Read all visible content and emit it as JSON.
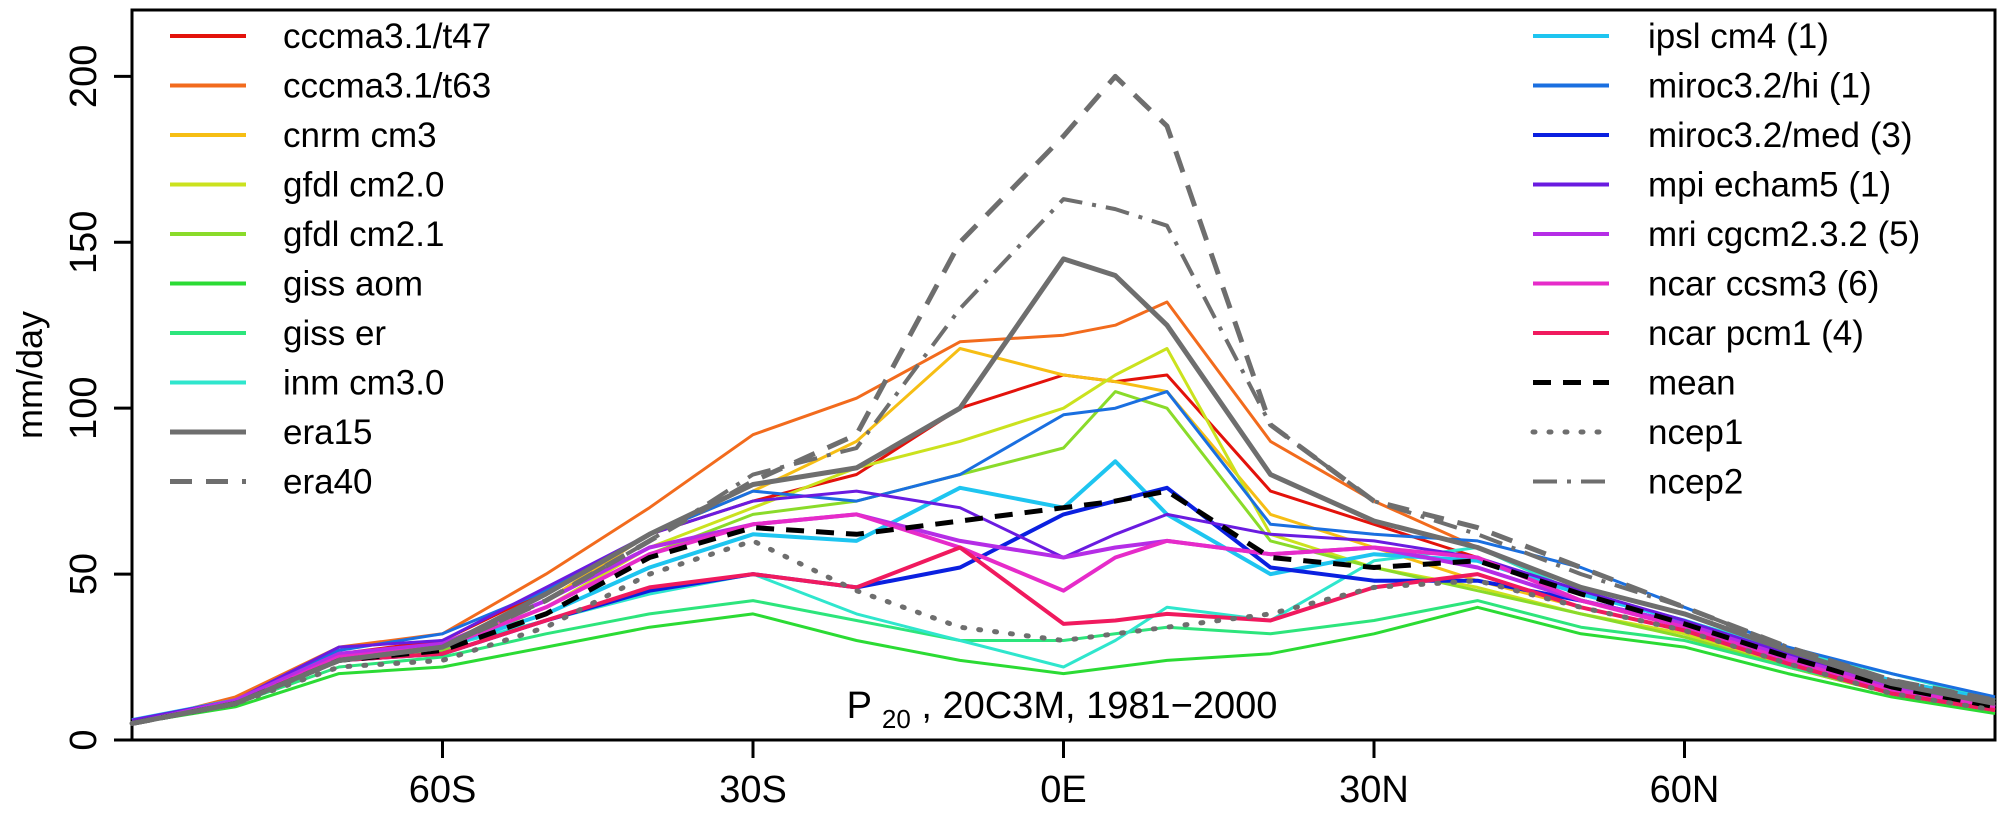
{
  "chart_data": {
    "type": "line",
    "ylabel": "mm/day",
    "ylim": [
      0,
      220
    ],
    "xlim": [
      -90,
      90
    ],
    "yticks": [
      0,
      50,
      100,
      150,
      200
    ],
    "ytick_labels": [
      "0",
      "50",
      "100",
      "150",
      "200"
    ],
    "xticks": [
      -60,
      -30,
      0,
      30,
      60
    ],
    "xtick_labels": [
      "60S",
      "30S",
      "0E",
      "30N",
      "60N"
    ],
    "caption": {
      "main": "P",
      "subscript": "20",
      "rest": " , 20C3M, 1981−2000"
    },
    "legend_left": [
      "cccma3.1/t47",
      "cccma3.1/t63",
      "cnrm cm3",
      "gfdl cm2.0",
      "gfdl cm2.1",
      "giss aom",
      "giss er",
      "inm cm3.0",
      "era15",
      "era40"
    ],
    "legend_right": [
      "ipsl cm4 (1)",
      "miroc3.2/hi (1)",
      "miroc3.2/med (3)",
      "mpi echam5 (1)",
      "mri cgcm2.3.2 (5)",
      "ncar ccsm3 (6)",
      "ncar pcm1 (4)",
      "mean",
      "ncep1",
      "ncep2"
    ],
    "x": [
      -90,
      -80,
      -70,
      -60,
      -50,
      -40,
      -30,
      -20,
      -10,
      0,
      5,
      10,
      20,
      30,
      40,
      50,
      60,
      70,
      80,
      90
    ],
    "series": [
      {
        "name": "cccma3.1/t47",
        "color": "#E3120B",
        "width": 3,
        "dash": "",
        "values": [
          5,
          12,
          26,
          30,
          45,
          62,
          72,
          80,
          100,
          110,
          108,
          110,
          75,
          65,
          55,
          42,
          35,
          24,
          16,
          10
        ]
      },
      {
        "name": "cccma3.1/t63",
        "color": "#F26B1D",
        "width": 3,
        "dash": "",
        "values": [
          5,
          13,
          28,
          32,
          50,
          70,
          92,
          103,
          120,
          122,
          125,
          132,
          90,
          72,
          58,
          44,
          36,
          25,
          17,
          11
        ]
      },
      {
        "name": "cnrm cm3",
        "color": "#F6BE14",
        "width": 3,
        "dash": "",
        "values": [
          5,
          12,
          25,
          28,
          42,
          62,
          75,
          90,
          118,
          110,
          108,
          105,
          68,
          58,
          48,
          40,
          33,
          23,
          15,
          10
        ]
      },
      {
        "name": "gfdl cm2.0",
        "color": "#CBE21E",
        "width": 3,
        "dash": "",
        "values": [
          5,
          11,
          24,
          27,
          40,
          58,
          70,
          82,
          90,
          100,
          110,
          118,
          62,
          52,
          46,
          38,
          32,
          22,
          14,
          9
        ]
      },
      {
        "name": "gfdl cm2.1",
        "color": "#8ADB2A",
        "width": 3,
        "dash": "",
        "values": [
          5,
          11,
          24,
          27,
          40,
          56,
          68,
          72,
          80,
          88,
          105,
          100,
          60,
          52,
          45,
          38,
          31,
          22,
          14,
          9
        ]
      },
      {
        "name": "giss aom",
        "color": "#2BDB34",
        "width": 3,
        "dash": "",
        "values": [
          5,
          10,
          20,
          22,
          28,
          34,
          38,
          30,
          24,
          20,
          22,
          24,
          26,
          32,
          40,
          32,
          28,
          20,
          13,
          8
        ]
      },
      {
        "name": "giss er",
        "color": "#2DE57C",
        "width": 3,
        "dash": "",
        "values": [
          5,
          11,
          22,
          25,
          32,
          38,
          42,
          36,
          30,
          30,
          32,
          34,
          32,
          36,
          42,
          34,
          30,
          22,
          15,
          10
        ]
      },
      {
        "name": "inm cm3.0",
        "color": "#2FE6CD",
        "width": 3,
        "dash": "",
        "values": [
          6,
          12,
          26,
          28,
          36,
          44,
          50,
          38,
          30,
          22,
          30,
          40,
          36,
          54,
          58,
          44,
          36,
          27,
          20,
          12
        ]
      },
      {
        "name": "ipsl cm4 (1)",
        "color": "#1EC5F0",
        "width": 4,
        "dash": "",
        "values": [
          6,
          12,
          25,
          28,
          38,
          52,
          62,
          60,
          76,
          70,
          84,
          68,
          50,
          56,
          54,
          44,
          36,
          26,
          18,
          12
        ]
      },
      {
        "name": "miroc3.2/hi (1)",
        "color": "#1A6FE0",
        "width": 3,
        "dash": "",
        "values": [
          6,
          12,
          27,
          32,
          45,
          62,
          75,
          72,
          80,
          98,
          100,
          105,
          65,
          62,
          60,
          52,
          40,
          28,
          20,
          13
        ]
      },
      {
        "name": "miroc3.2/med (3)",
        "color": "#0A20E0",
        "width": 4,
        "dash": "",
        "values": [
          5,
          11,
          24,
          26,
          36,
          45,
          50,
          46,
          52,
          68,
          72,
          76,
          52,
          48,
          48,
          42,
          35,
          25,
          16,
          10
        ]
      },
      {
        "name": "mpi echam5 (1)",
        "color": "#6A1BE0",
        "width": 3,
        "dash": "",
        "values": [
          6,
          12,
          28,
          30,
          46,
          62,
          72,
          75,
          70,
          55,
          62,
          68,
          62,
          60,
          55,
          45,
          36,
          26,
          17,
          11
        ]
      },
      {
        "name": "mri cgcm2.3.2 (5)",
        "color": "#B52DE6",
        "width": 4,
        "dash": "",
        "values": [
          5,
          12,
          26,
          29,
          42,
          58,
          65,
          68,
          60,
          55,
          58,
          60,
          56,
          58,
          52,
          42,
          35,
          25,
          16,
          10
        ]
      },
      {
        "name": "ncar ccsm3 (6)",
        "color": "#E62BC9",
        "width": 4,
        "dash": "",
        "values": [
          5,
          11,
          25,
          28,
          40,
          56,
          65,
          68,
          58,
          45,
          55,
          60,
          56,
          58,
          55,
          42,
          34,
          24,
          15,
          10
        ]
      },
      {
        "name": "ncar pcm1 (4)",
        "color": "#F01A5E",
        "width": 4,
        "dash": "",
        "values": [
          5,
          11,
          24,
          26,
          36,
          46,
          50,
          46,
          58,
          35,
          36,
          38,
          36,
          46,
          50,
          40,
          33,
          23,
          14,
          9
        ]
      },
      {
        "name": "mean",
        "color": "#000000",
        "width": 5,
        "dash": "18,12",
        "values": [
          5,
          11,
          24,
          27,
          38,
          55,
          64,
          62,
          66,
          70,
          72,
          75,
          55,
          52,
          54,
          44,
          35,
          25,
          16,
          10
        ]
      },
      {
        "name": "ncep1",
        "color": "#6E6E6E",
        "width": 5,
        "dash": "2,14",
        "values": [
          5,
          11,
          22,
          24,
          34,
          50,
          60,
          45,
          34,
          30,
          32,
          34,
          38,
          46,
          48,
          40,
          33,
          23,
          14,
          9
        ]
      },
      {
        "name": "ncep2",
        "color": "#6E6E6E",
        "width": 4,
        "dash": "24,10,4,10",
        "values": [
          5,
          11,
          24,
          28,
          42,
          60,
          80,
          88,
          130,
          163,
          160,
          155,
          95,
          72,
          62,
          50,
          40,
          28,
          18,
          12
        ]
      },
      {
        "name": "era15",
        "color": "#6E6E6E",
        "width": 5,
        "dash": "",
        "values": [
          5,
          11,
          24,
          28,
          44,
          62,
          77,
          82,
          100,
          145,
          140,
          125,
          80,
          66,
          58,
          46,
          38,
          27,
          17,
          11
        ]
      },
      {
        "name": "era40",
        "color": "#6E6E6E",
        "width": 5,
        "dash": "22,14",
        "values": [
          5,
          11,
          24,
          28,
          42,
          60,
          78,
          92,
          150,
          182,
          200,
          185,
          95,
          72,
          64,
          52,
          40,
          28,
          18,
          12
        ]
      }
    ]
  }
}
